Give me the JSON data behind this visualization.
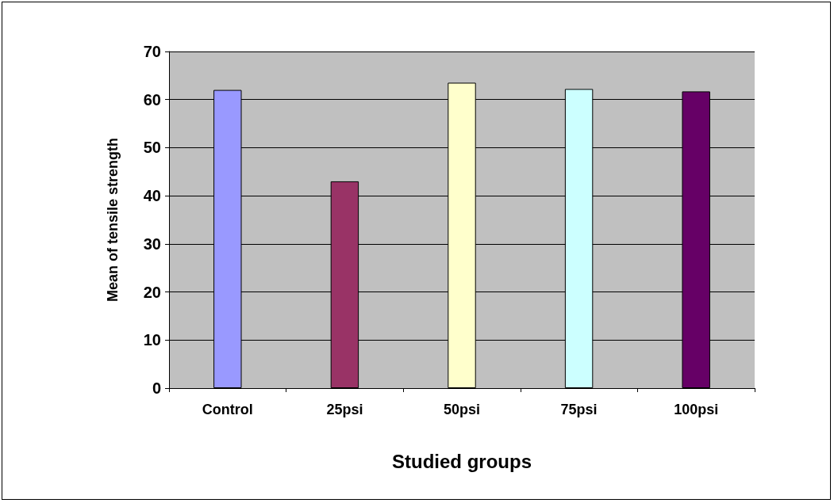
{
  "chart_data": {
    "type": "bar",
    "xlabel": "Studied groups",
    "ylabel": "Mean of tensile strength",
    "categories": [
      "Control",
      "25psi",
      "50psi",
      "75psi",
      "100psi"
    ],
    "values": [
      62,
      43,
      63.5,
      62.2,
      61.7
    ],
    "colors": [
      "#9999ff",
      "#993366",
      "#ffffcc",
      "#ccffff",
      "#660066"
    ],
    "ylim": [
      0,
      70
    ],
    "yticks": [
      0,
      10,
      20,
      30,
      40,
      50,
      60,
      70
    ],
    "grid": "y"
  }
}
